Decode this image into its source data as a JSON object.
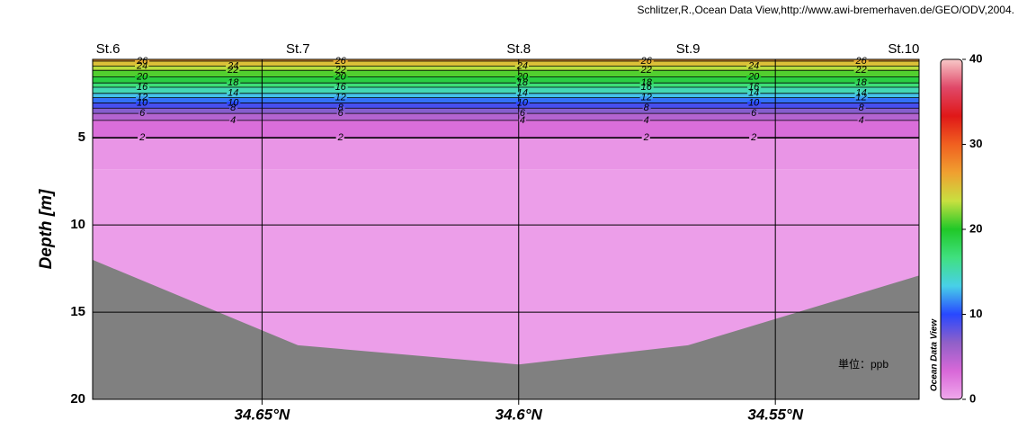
{
  "chart_data": {
    "type": "section",
    "credit": "Schlitzer,R.,Ocean Data View,http://www.awi-bremerhaven.de/GEO/ODV,2004.",
    "y_label": "Depth [m]",
    "unit_note": "単位：ppb",
    "watermark": "Ocean Data View",
    "stations": [
      {
        "name": "St.6",
        "lat": 34.68
      },
      {
        "name": "St.7",
        "lat": 34.643
      },
      {
        "name": "St.8",
        "lat": 34.6
      },
      {
        "name": "St.9",
        "lat": 34.567
      },
      {
        "name": "St.10",
        "lat": 34.525
      }
    ],
    "xlim": [
      34.683,
      34.522
    ],
    "xticks": [
      {
        "value": 34.65,
        "label": "34.65°N"
      },
      {
        "value": 34.6,
        "label": "34.6°N"
      },
      {
        "value": 34.55,
        "label": "34.55°N"
      }
    ],
    "ylim": [
      0.5,
      20
    ],
    "yticks": [
      5,
      10,
      15,
      20
    ],
    "grid": true,
    "bottom": {
      "x": [
        34.683,
        34.643,
        34.6,
        34.567,
        34.522
      ],
      "depth": [
        12.0,
        16.9,
        18.0,
        16.9,
        12.9
      ]
    },
    "contours": [
      {
        "level": 26,
        "depth": 0.6
      },
      {
        "level": 24,
        "depth": 0.88
      },
      {
        "level": 22,
        "depth": 1.13
      },
      {
        "level": 20,
        "depth": 1.5
      },
      {
        "level": 18,
        "depth": 1.85
      },
      {
        "level": 16,
        "depth": 2.1
      },
      {
        "level": 14,
        "depth": 2.45
      },
      {
        "level": 12,
        "depth": 2.7
      },
      {
        "level": 10,
        "depth": 3.0
      },
      {
        "level": 8,
        "depth": 3.3
      },
      {
        "level": 6,
        "depth": 3.6
      },
      {
        "level": 4,
        "depth": 4.0
      },
      {
        "level": 2,
        "depth": 5.0
      }
    ],
    "colorbar": {
      "lim": [
        0,
        40
      ],
      "ticks": [
        0,
        10,
        20,
        30,
        40
      ],
      "colormap": [
        "#f0a8ec",
        "#d868d8",
        "#9060c8",
        "#2848ff",
        "#48d0e8",
        "#40e080",
        "#20c828",
        "#c8e040",
        "#f0a030",
        "#f06020",
        "#e01818",
        "#e04868",
        "#f8c8c8"
      ]
    },
    "bottom_color": "#808080"
  }
}
